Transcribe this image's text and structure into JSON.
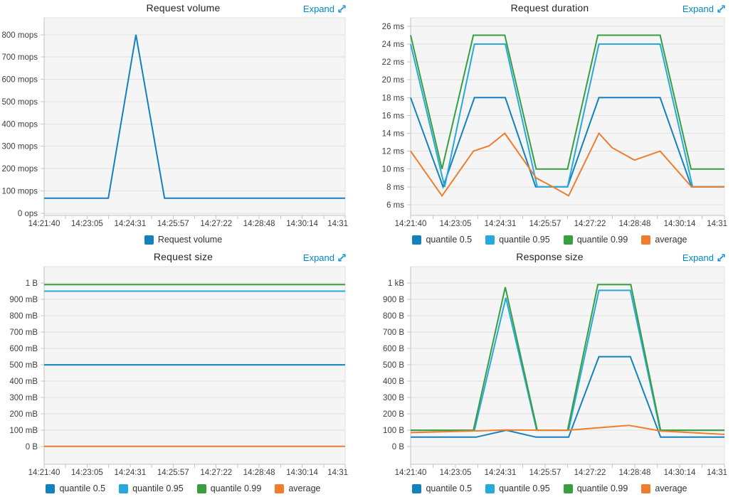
{
  "ui": {
    "expand_label": "Expand",
    "link_color": "#0088ce"
  },
  "chart_data": [
    {
      "type": "line",
      "title": "Request volume",
      "xlim": [
        0,
        600
      ],
      "ylim": [
        -10,
        876
      ],
      "grid": true,
      "legend_position": "bottom",
      "x_ticks": [
        {
          "t": 0,
          "label": "14:21:40"
        },
        {
          "t": 85.7,
          "label": "14:23:05"
        },
        {
          "t": 171.4,
          "label": "14:24:31"
        },
        {
          "t": 257.1,
          "label": "14:25:57"
        },
        {
          "t": 342.9,
          "label": "14:27:22"
        },
        {
          "t": 428.6,
          "label": "14:28:48"
        },
        {
          "t": 514.3,
          "label": "14:30:14"
        },
        {
          "t": 600,
          "label": "14:31",
          "align": "end"
        }
      ],
      "x_minor_divisions": 14,
      "y_ticks": [
        {
          "v": 0,
          "label": "0 ops"
        },
        {
          "v": 100,
          "label": "100 mops"
        },
        {
          "v": 200,
          "label": "200 mops"
        },
        {
          "v": 300,
          "label": "300 mops"
        },
        {
          "v": 400,
          "label": "400 mops"
        },
        {
          "v": 500,
          "label": "500 mops"
        },
        {
          "v": 600,
          "label": "600 mops"
        },
        {
          "v": 700,
          "label": "700 mops"
        },
        {
          "v": 800,
          "label": "800 mops"
        }
      ],
      "series": [
        {
          "name": "Request volume",
          "color": "#1482ba",
          "points": [
            [
              0,
              67
            ],
            [
              128,
              67
            ],
            [
              183,
              800
            ],
            [
              240,
              67
            ],
            [
              600,
              67
            ]
          ]
        }
      ]
    },
    {
      "type": "line",
      "title": "Request duration",
      "xlim": [
        0,
        600
      ],
      "ylim": [
        4.8,
        26.95
      ],
      "grid": true,
      "legend_position": "bottom",
      "x_ticks": [
        {
          "t": 0,
          "label": "14:21:40"
        },
        {
          "t": 85.7,
          "label": "14:23:05"
        },
        {
          "t": 171.4,
          "label": "14:24:31"
        },
        {
          "t": 257.1,
          "label": "14:25:57"
        },
        {
          "t": 342.9,
          "label": "14:27:22"
        },
        {
          "t": 428.6,
          "label": "14:28:48"
        },
        {
          "t": 514.3,
          "label": "14:30:14"
        },
        {
          "t": 600,
          "label": "14:31",
          "align": "end"
        }
      ],
      "x_minor_divisions": 14,
      "y_ticks": [
        {
          "v": 6,
          "label": "6 ms"
        },
        {
          "v": 8,
          "label": "8 ms"
        },
        {
          "v": 10,
          "label": "10 ms"
        },
        {
          "v": 12,
          "label": "12 ms"
        },
        {
          "v": 14,
          "label": "14 ms"
        },
        {
          "v": 16,
          "label": "16 ms"
        },
        {
          "v": 18,
          "label": "18 ms"
        },
        {
          "v": 20,
          "label": "20 ms"
        },
        {
          "v": 22,
          "label": "22 ms"
        },
        {
          "v": 24,
          "label": "24 ms"
        },
        {
          "v": 26,
          "label": "26 ms"
        }
      ],
      "series": [
        {
          "name": "quantile 0.5",
          "color": "#1482ba",
          "points": [
            [
              0,
              18
            ],
            [
              62,
              8
            ],
            [
              122,
              18
            ],
            [
              181,
              18
            ],
            [
              239,
              8
            ],
            [
              300,
              8
            ],
            [
              360,
              18
            ],
            [
              477,
              18
            ],
            [
              537,
              8
            ],
            [
              600,
              8
            ]
          ]
        },
        {
          "name": "quantile 0.95",
          "color": "#27a9dc",
          "points": [
            [
              0,
              24
            ],
            [
              65,
              8
            ],
            [
              122,
              24
            ],
            [
              181,
              24
            ],
            [
              242,
              8
            ],
            [
              300,
              8
            ],
            [
              360,
              24
            ],
            [
              477,
              24
            ],
            [
              539,
              8
            ],
            [
              600,
              8
            ]
          ]
        },
        {
          "name": "quantile 0.99",
          "color": "#389e3f",
          "points": [
            [
              0,
              25
            ],
            [
              60,
              10
            ],
            [
              120,
              25
            ],
            [
              180,
              25
            ],
            [
              240,
              10
            ],
            [
              300,
              10
            ],
            [
              358,
              25
            ],
            [
              477,
              25
            ],
            [
              536,
              10
            ],
            [
              600,
              10
            ]
          ]
        },
        {
          "name": "average",
          "color": "#ee7d2e",
          "points": [
            [
              0,
              12
            ],
            [
              60,
              7
            ],
            [
              120,
              12
            ],
            [
              150,
              12.6
            ],
            [
              180,
              14
            ],
            [
              240,
              9
            ],
            [
              272,
              8
            ],
            [
              302,
              7
            ],
            [
              360,
              14
            ],
            [
              385,
              12.4
            ],
            [
              428,
              11
            ],
            [
              477,
              12
            ],
            [
              537,
              8
            ],
            [
              600,
              8
            ]
          ]
        }
      ]
    },
    {
      "type": "line",
      "title": "Request size",
      "xlim": [
        0,
        600
      ],
      "ylim": [
        -108,
        1100
      ],
      "grid": true,
      "legend_position": "bottom",
      "x_ticks": [
        {
          "t": 0,
          "label": "14:21:40"
        },
        {
          "t": 85.7,
          "label": "14:23:05"
        },
        {
          "t": 171.4,
          "label": "14:24:31"
        },
        {
          "t": 257.1,
          "label": "14:25:57"
        },
        {
          "t": 342.9,
          "label": "14:27:22"
        },
        {
          "t": 428.6,
          "label": "14:28:48"
        },
        {
          "t": 514.3,
          "label": "14:30:14"
        },
        {
          "t": 600,
          "label": "14:31",
          "align": "end"
        }
      ],
      "x_minor_divisions": 14,
      "y_ticks": [
        {
          "v": 0,
          "label": "0 B"
        },
        {
          "v": 100,
          "label": "100 mB"
        },
        {
          "v": 200,
          "label": "200 mB"
        },
        {
          "v": 300,
          "label": "300 mB"
        },
        {
          "v": 400,
          "label": "400 mB"
        },
        {
          "v": 500,
          "label": "500 mB"
        },
        {
          "v": 600,
          "label": "600 mB"
        },
        {
          "v": 700,
          "label": "700 mB"
        },
        {
          "v": 800,
          "label": "800 mB"
        },
        {
          "v": 900,
          "label": "900 mB"
        },
        {
          "v": 1000,
          "label": "1 B"
        }
      ],
      "series": [
        {
          "name": "quantile 0.5",
          "color": "#1482ba",
          "points": [
            [
              0,
              500
            ],
            [
              600,
              500
            ]
          ]
        },
        {
          "name": "quantile 0.95",
          "color": "#27a9dc",
          "points": [
            [
              0,
              950
            ],
            [
              600,
              950
            ]
          ]
        },
        {
          "name": "quantile 0.99",
          "color": "#389e3f",
          "points": [
            [
              0,
              990
            ],
            [
              600,
              990
            ]
          ]
        },
        {
          "name": "average",
          "color": "#ee7d2e",
          "points": [
            [
              0,
              2
            ],
            [
              600,
              2
            ]
          ]
        }
      ]
    },
    {
      "type": "line",
      "title": "Response size",
      "xlim": [
        0,
        600
      ],
      "ylim": [
        -108,
        1100
      ],
      "grid": true,
      "legend_position": "bottom",
      "x_ticks": [
        {
          "t": 0,
          "label": "14:21:40"
        },
        {
          "t": 85.7,
          "label": "14:23:05"
        },
        {
          "t": 171.4,
          "label": "14:24:31"
        },
        {
          "t": 257.1,
          "label": "14:25:57"
        },
        {
          "t": 342.9,
          "label": "14:27:22"
        },
        {
          "t": 428.6,
          "label": "14:28:48"
        },
        {
          "t": 514.3,
          "label": "14:30:14"
        },
        {
          "t": 600,
          "label": "14:31",
          "align": "end"
        }
      ],
      "x_minor_divisions": 14,
      "y_ticks": [
        {
          "v": 0,
          "label": "0 B"
        },
        {
          "v": 100,
          "label": "100 B"
        },
        {
          "v": 200,
          "label": "200 B"
        },
        {
          "v": 300,
          "label": "300 B"
        },
        {
          "v": 400,
          "label": "400 B"
        },
        {
          "v": 500,
          "label": "500 B"
        },
        {
          "v": 600,
          "label": "600 B"
        },
        {
          "v": 700,
          "label": "700 B"
        },
        {
          "v": 800,
          "label": "800 B"
        },
        {
          "v": 900,
          "label": "900 B"
        },
        {
          "v": 1000,
          "label": "1 kB"
        }
      ],
      "series": [
        {
          "name": "quantile 0.5",
          "color": "#1482ba",
          "points": [
            [
              0,
              58
            ],
            [
              125,
              58
            ],
            [
              183,
              100
            ],
            [
              240,
              58
            ],
            [
              302,
              58
            ],
            [
              360,
              550
            ],
            [
              420,
              550
            ],
            [
              478,
              58
            ],
            [
              600,
              58
            ]
          ]
        },
        {
          "name": "quantile 0.95",
          "color": "#27a9dc",
          "points": [
            [
              0,
              100
            ],
            [
              122,
              100
            ],
            [
              182,
              910
            ],
            [
              241,
              100
            ],
            [
              302,
              100
            ],
            [
              360,
              955
            ],
            [
              420,
              955
            ],
            [
              477,
              100
            ],
            [
              600,
              100
            ]
          ]
        },
        {
          "name": "quantile 0.99",
          "color": "#389e3f",
          "points": [
            [
              0,
              100
            ],
            [
              120,
              100
            ],
            [
              181,
              975
            ],
            [
              242,
              100
            ],
            [
              300,
              100
            ],
            [
              358,
              990
            ],
            [
              421,
              990
            ],
            [
              478,
              100
            ],
            [
              600,
              100
            ]
          ]
        },
        {
          "name": "average",
          "color": "#ee7d2e",
          "points": [
            [
              0,
              86
            ],
            [
              120,
              96
            ],
            [
              180,
              102
            ],
            [
              300,
              100
            ],
            [
              417,
              130
            ],
            [
              478,
              96
            ],
            [
              600,
              75
            ]
          ]
        }
      ]
    }
  ]
}
